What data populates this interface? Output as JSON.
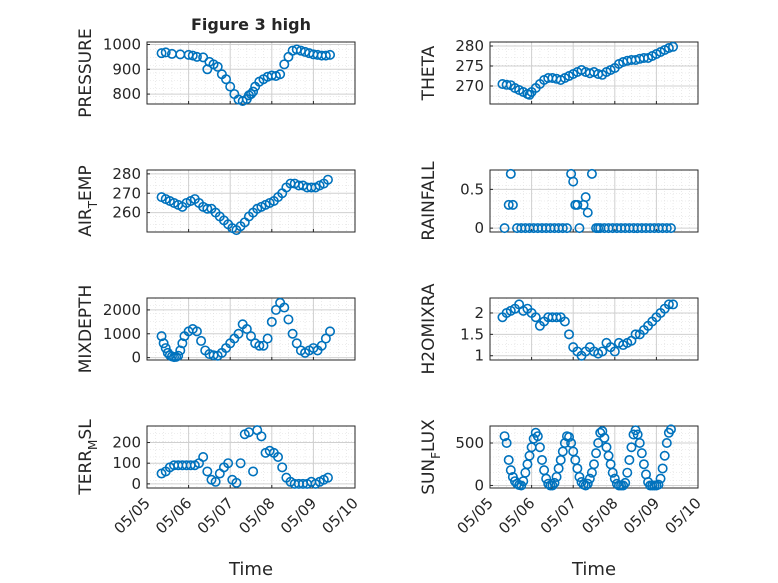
{
  "figure": {
    "title": "Figure 3 high",
    "series_color": "#0072BD",
    "xlabel_left": "Time",
    "xlabel_right": "Time"
  },
  "chart_data": [
    {
      "type": "scatter",
      "panel": "PRESSURE",
      "ylabel": "PRESSURE",
      "xticks": [
        "05/05",
        "05/06",
        "05/07",
        "05/08",
        "05/09",
        "05/10"
      ],
      "yticks": [
        800,
        900,
        1000
      ],
      "ylim": [
        760,
        1010
      ],
      "x": [
        0.35,
        0.45,
        0.6,
        0.8,
        1.0,
        1.1,
        1.2,
        1.35,
        1.45,
        1.5,
        1.6,
        1.7,
        1.8,
        1.9,
        2.0,
        2.1,
        2.2,
        2.3,
        2.4,
        2.45,
        2.5,
        2.55,
        2.6,
        2.7,
        2.8,
        2.9,
        3.0,
        3.1,
        3.2,
        3.3,
        3.4,
        3.5,
        3.6,
        3.7,
        3.8,
        3.9,
        4.0,
        4.1,
        4.2,
        4.3,
        4.4
      ],
      "values": [
        965,
        968,
        962,
        960,
        958,
        955,
        950,
        948,
        900,
        930,
        920,
        910,
        880,
        860,
        830,
        800,
        778,
        772,
        780,
        795,
        800,
        810,
        830,
        850,
        860,
        870,
        875,
        873,
        880,
        920,
        950,
        975,
        980,
        975,
        970,
        965,
        960,
        958,
        955,
        955,
        958
      ],
      "grid": true
    },
    {
      "type": "scatter",
      "panel": "THETA",
      "ylabel": "THETA",
      "xticks": [
        "05/05",
        "05/06",
        "05/07",
        "05/08",
        "05/09",
        "05/10"
      ],
      "yticks": [
        270,
        275,
        280
      ],
      "ylim": [
        265.5,
        281
      ],
      "x": [
        0.3,
        0.4,
        0.5,
        0.6,
        0.7,
        0.8,
        0.9,
        0.95,
        1.0,
        1.1,
        1.2,
        1.3,
        1.4,
        1.5,
        1.6,
        1.7,
        1.8,
        1.9,
        2.0,
        2.1,
        2.2,
        2.3,
        2.4,
        2.5,
        2.6,
        2.7,
        2.8,
        2.9,
        3.0,
        3.1,
        3.2,
        3.3,
        3.4,
        3.5,
        3.6,
        3.7,
        3.8,
        3.9,
        4.0,
        4.1,
        4.2,
        4.3,
        4.4
      ],
      "values": [
        270.5,
        270.3,
        270.2,
        269.5,
        269.0,
        268.5,
        268.0,
        267.8,
        268.5,
        269.5,
        270.5,
        271.5,
        272.0,
        272.0,
        271.8,
        271.5,
        272.0,
        272.5,
        273.0,
        273.5,
        274.0,
        273.5,
        273.2,
        273.5,
        273.0,
        272.8,
        273.5,
        274.0,
        274.5,
        275.5,
        276.0,
        276.3,
        276.5,
        276.5,
        276.8,
        277.0,
        277.0,
        277.5,
        278.0,
        278.5,
        279.0,
        279.5,
        279.8
      ],
      "grid": true
    },
    {
      "type": "scatter",
      "panel": "AIR_TEMP",
      "ylabel_parts": [
        "AIR",
        "T",
        "EMP"
      ],
      "xticks": [
        "05/05",
        "05/06",
        "05/07",
        "05/08",
        "05/09",
        "05/10"
      ],
      "yticks": [
        260,
        270,
        280
      ],
      "ylim": [
        250,
        282
      ],
      "x": [
        0.35,
        0.45,
        0.55,
        0.65,
        0.75,
        0.85,
        0.95,
        1.05,
        1.15,
        1.25,
        1.35,
        1.45,
        1.55,
        1.65,
        1.75,
        1.85,
        1.95,
        2.05,
        2.15,
        2.25,
        2.35,
        2.45,
        2.55,
        2.65,
        2.75,
        2.85,
        2.95,
        3.05,
        3.15,
        3.25,
        3.35,
        3.45,
        3.55,
        3.65,
        3.75,
        3.85,
        3.95,
        4.05,
        4.15,
        4.25,
        4.35
      ],
      "values": [
        268,
        267,
        266,
        265,
        264,
        263,
        265,
        266,
        267,
        265,
        263,
        262,
        262,
        260,
        258,
        256,
        254,
        252,
        251,
        253,
        255,
        258,
        260,
        262,
        263,
        264,
        265,
        266,
        268,
        270,
        273,
        275,
        275,
        274,
        274,
        273,
        273,
        273,
        274,
        275,
        277
      ],
      "grid": true
    },
    {
      "type": "scatter",
      "panel": "RAINFALL",
      "ylabel": "RAINFALL",
      "xticks": [
        "05/05",
        "05/06",
        "05/07",
        "05/08",
        "05/09",
        "05/10"
      ],
      "yticks": [
        0,
        0.5
      ],
      "ylim": [
        -0.05,
        0.75
      ],
      "x": [
        0.35,
        0.45,
        0.5,
        0.55,
        0.65,
        0.75,
        0.85,
        0.95,
        1.05,
        1.15,
        1.25,
        1.35,
        1.45,
        1.55,
        1.65,
        1.75,
        1.85,
        1.95,
        2.0,
        2.05,
        2.1,
        2.15,
        2.25,
        2.3,
        2.35,
        2.45,
        2.55,
        2.6,
        2.65,
        2.75,
        2.85,
        2.95,
        3.05,
        3.15,
        3.25,
        3.35,
        3.45,
        3.55,
        3.65,
        3.75,
        3.85,
        3.95,
        4.05,
        4.15,
        4.25,
        4.35
      ],
      "values": [
        0,
        0.3,
        0.7,
        0.3,
        0,
        0,
        0,
        0,
        0,
        0,
        0,
        0,
        0,
        0,
        0,
        0,
        0,
        0.7,
        0.6,
        0.3,
        0.3,
        0,
        0.3,
        0.4,
        0.2,
        0.7,
        0,
        0,
        0,
        0,
        0,
        0,
        0,
        0,
        0,
        0,
        0,
        0,
        0,
        0,
        0,
        0,
        0,
        0,
        0,
        0
      ],
      "grid": true
    },
    {
      "type": "scatter",
      "panel": "MIXDEPTH",
      "ylabel": "MIXDEPTH",
      "xticks": [
        "05/05",
        "05/06",
        "05/07",
        "05/08",
        "05/09",
        "05/10"
      ],
      "yticks": [
        0,
        1000,
        2000
      ],
      "ylim": [
        -100,
        2500
      ],
      "x": [
        0.35,
        0.4,
        0.45,
        0.5,
        0.55,
        0.6,
        0.65,
        0.7,
        0.75,
        0.8,
        0.85,
        0.9,
        1.0,
        1.1,
        1.2,
        1.3,
        1.4,
        1.5,
        1.6,
        1.7,
        1.8,
        1.9,
        2.0,
        2.1,
        2.2,
        2.3,
        2.4,
        2.5,
        2.6,
        2.7,
        2.8,
        2.9,
        3.0,
        3.1,
        3.2,
        3.3,
        3.4,
        3.5,
        3.6,
        3.7,
        3.8,
        3.9,
        4.0,
        4.1,
        4.2,
        4.3,
        4.4
      ],
      "values": [
        900,
        600,
        400,
        200,
        100,
        50,
        20,
        30,
        80,
        300,
        600,
        900,
        1100,
        1200,
        1100,
        700,
        300,
        150,
        100,
        80,
        200,
        400,
        600,
        800,
        1000,
        1400,
        1200,
        900,
        600,
        500,
        500,
        800,
        1500,
        2000,
        2300,
        2100,
        1600,
        1000,
        600,
        300,
        200,
        300,
        400,
        300,
        500,
        800,
        1100
      ],
      "grid": true
    },
    {
      "type": "scatter",
      "panel": "H2OMIXRA",
      "ylabel": "H2OMIXRA",
      "xticks": [
        "05/05",
        "05/06",
        "05/07",
        "05/08",
        "05/09",
        "05/10"
      ],
      "yticks": [
        1,
        1.5,
        2
      ],
      "ylim": [
        0.9,
        2.35
      ],
      "x": [
        0.3,
        0.4,
        0.5,
        0.6,
        0.7,
        0.8,
        0.9,
        1.0,
        1.1,
        1.2,
        1.3,
        1.4,
        1.5,
        1.6,
        1.7,
        1.8,
        1.9,
        2.0,
        2.1,
        2.2,
        2.3,
        2.4,
        2.5,
        2.6,
        2.7,
        2.8,
        2.9,
        3.0,
        3.1,
        3.2,
        3.3,
        3.4,
        3.5,
        3.6,
        3.7,
        3.8,
        3.9,
        4.0,
        4.1,
        4.2,
        4.3,
        4.4
      ],
      "values": [
        1.9,
        2.0,
        2.05,
        2.1,
        2.2,
        2.05,
        2.1,
        2.0,
        1.9,
        1.7,
        1.8,
        1.9,
        1.9,
        1.9,
        1.9,
        1.8,
        1.5,
        1.2,
        1.1,
        1.0,
        1.1,
        1.2,
        1.1,
        1.05,
        1.1,
        1.3,
        1.2,
        1.1,
        1.3,
        1.25,
        1.3,
        1.35,
        1.5,
        1.5,
        1.6,
        1.7,
        1.8,
        1.9,
        2.0,
        2.1,
        2.2,
        2.2
      ],
      "grid": true
    },
    {
      "type": "scatter",
      "panel": "TERR_MSL",
      "ylabel_parts": [
        "TERR",
        "M",
        "SL"
      ],
      "xticks": [
        "05/05",
        "05/06",
        "05/07",
        "05/08",
        "05/09",
        "05/10"
      ],
      "yticks": [
        0,
        100,
        200
      ],
      "ylim": [
        -20,
        280
      ],
      "x": [
        0.35,
        0.45,
        0.55,
        0.65,
        0.75,
        0.85,
        0.95,
        1.05,
        1.15,
        1.25,
        1.35,
        1.45,
        1.55,
        1.65,
        1.75,
        1.85,
        1.95,
        2.05,
        2.15,
        2.25,
        2.35,
        2.45,
        2.55,
        2.65,
        2.75,
        2.85,
        2.95,
        3.05,
        3.15,
        3.25,
        3.35,
        3.45,
        3.55,
        3.65,
        3.75,
        3.85,
        3.95,
        4.05,
        4.15,
        4.25,
        4.35
      ],
      "values": [
        50,
        60,
        80,
        90,
        90,
        90,
        90,
        90,
        90,
        100,
        130,
        60,
        20,
        10,
        50,
        80,
        100,
        20,
        5,
        100,
        240,
        250,
        60,
        260,
        230,
        150,
        160,
        150,
        130,
        80,
        30,
        10,
        0,
        0,
        0,
        0,
        10,
        0,
        10,
        20,
        30
      ],
      "grid": true
    },
    {
      "type": "scatter",
      "panel": "SUN_FLUX",
      "ylabel_parts": [
        "SUN",
        "F",
        "LUX"
      ],
      "xticks": [
        "05/05",
        "05/06",
        "05/07",
        "05/08",
        "05/09",
        "05/10"
      ],
      "yticks": [
        0,
        500
      ],
      "ylim": [
        -30,
        700
      ],
      "x": [
        0.35,
        0.4,
        0.45,
        0.5,
        0.55,
        0.6,
        0.65,
        0.7,
        0.75,
        0.8,
        0.85,
        0.9,
        0.95,
        1.0,
        1.05,
        1.1,
        1.15,
        1.2,
        1.25,
        1.3,
        1.35,
        1.4,
        1.45,
        1.5,
        1.55,
        1.6,
        1.65,
        1.7,
        1.75,
        1.8,
        1.85,
        1.9,
        1.95,
        2.0,
        2.05,
        2.1,
        2.15,
        2.2,
        2.25,
        2.3,
        2.35,
        2.4,
        2.45,
        2.5,
        2.55,
        2.6,
        2.65,
        2.7,
        2.75,
        2.8,
        2.85,
        2.9,
        2.95,
        3.0,
        3.05,
        3.1,
        3.15,
        3.2,
        3.25,
        3.3,
        3.35,
        3.4,
        3.45,
        3.5,
        3.55,
        3.6,
        3.65,
        3.7,
        3.75,
        3.8,
        3.85,
        3.9,
        3.95,
        4.0,
        4.05,
        4.1,
        4.15,
        4.2,
        4.25,
        4.3,
        4.35
      ],
      "values": [
        580,
        500,
        300,
        180,
        100,
        50,
        20,
        5,
        0,
        50,
        150,
        250,
        350,
        450,
        550,
        620,
        580,
        450,
        300,
        180,
        80,
        20,
        0,
        0,
        30,
        100,
        200,
        300,
        400,
        500,
        580,
        570,
        500,
        400,
        300,
        200,
        100,
        40,
        10,
        0,
        20,
        80,
        150,
        250,
        380,
        500,
        620,
        640,
        560,
        450,
        350,
        250,
        150,
        80,
        20,
        0,
        0,
        0,
        30,
        150,
        300,
        450,
        600,
        650,
        600,
        500,
        380,
        250,
        130,
        40,
        0,
        0,
        0,
        0,
        10,
        80,
        200,
        350,
        500,
        620,
        660
      ],
      "grid": true
    }
  ]
}
